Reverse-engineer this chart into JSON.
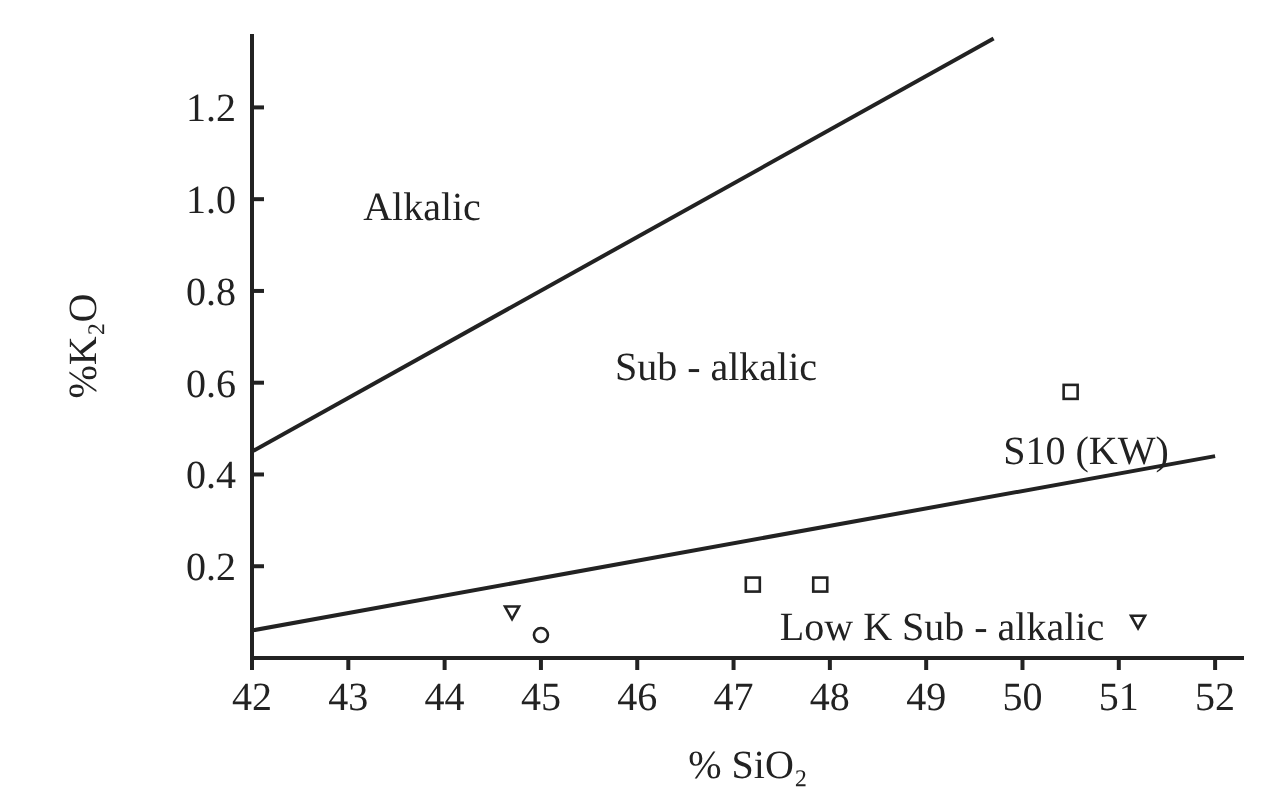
{
  "chart_data": {
    "type": "scatter",
    "xlabel": "% SiO₂",
    "ylabel": "%K₂O",
    "xlim": [
      42,
      52.3
    ],
    "ylim": [
      0,
      1.36
    ],
    "xticks": [
      42,
      43,
      44,
      45,
      46,
      47,
      48,
      49,
      50,
      51,
      52
    ],
    "yticks": [
      0.2,
      0.4,
      0.6,
      0.8,
      {
        "value": 1,
        "label": "1.0"
      },
      1.2
    ],
    "grid": false,
    "series": [
      {
        "type": "line",
        "color": "#222222",
        "x": [
          42,
          49.7
        ],
        "values": [
          0.45,
          1.35
        ],
        "marker": "none",
        "line_style": "solid"
      },
      {
        "type": "line",
        "color": "#222222",
        "x": [
          42,
          52
        ],
        "values": [
          0.06,
          0.44
        ],
        "marker": "none",
        "line_style": "solid"
      },
      {
        "color": "#222222",
        "x": [
          47.2,
          47.9,
          50.5
        ],
        "values": [
          0.16,
          0.16,
          0.58
        ],
        "marker": "square"
      },
      {
        "color": "#222222",
        "x": [
          44.7,
          51.2
        ],
        "values": [
          0.1,
          0.08
        ],
        "marker": "triangle"
      },
      {
        "color": "#222222",
        "x": [
          45
        ],
        "values": [
          0.05
        ],
        "marker": "circle"
      }
    ],
    "annotations": [
      "Alkalic",
      "Sub - alkalic",
      "S10 (KW)",
      "Low K Sub - alkalic"
    ]
  }
}
